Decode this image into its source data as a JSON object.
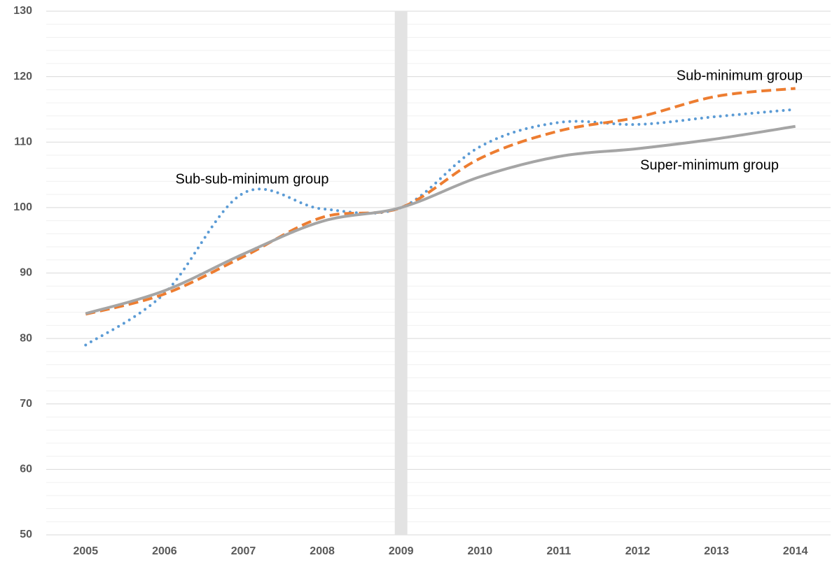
{
  "chart_data": {
    "type": "line",
    "categories": [
      "2005",
      "2006",
      "2007",
      "2008",
      "2009",
      "2010",
      "2011",
      "2012",
      "2013",
      "2014"
    ],
    "series": [
      {
        "name": "Sub-sub-minimum group",
        "color": "#5b9bd5",
        "style": "dotted",
        "values": [
          79,
          86.9,
          102.2,
          99.8,
          100,
          109.3,
          113,
          112.7,
          113.9,
          115
        ]
      },
      {
        "name": "Sub-minimum group",
        "color": "#ed7d31",
        "style": "dashed",
        "values": [
          83.7,
          86.8,
          92.5,
          98.5,
          100,
          107.5,
          111.7,
          113.8,
          117,
          118.2
        ]
      },
      {
        "name": "Super-minimum group",
        "color": "#a5a5a5",
        "style": "solid",
        "values": [
          83.8,
          87.3,
          92.9,
          97.9,
          100,
          104.7,
          107.8,
          109,
          110.5,
          112.4
        ]
      }
    ],
    "ylim": [
      50,
      130
    ],
    "yticks": [
      50,
      60,
      70,
      80,
      90,
      100,
      110,
      120,
      130
    ],
    "minor_yticks": [
      52,
      54,
      56,
      58,
      62,
      64,
      66,
      68,
      72,
      74,
      76,
      78,
      82,
      84,
      86,
      88,
      92,
      94,
      96,
      98,
      102,
      104,
      106,
      108,
      112,
      114,
      116,
      118,
      122,
      124,
      126,
      128
    ],
    "grid": true,
    "highlight_category": "2009",
    "smooth": true
  }
}
